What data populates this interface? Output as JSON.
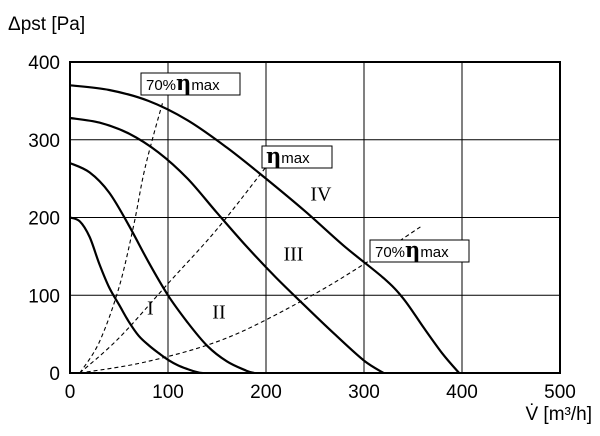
{
  "chart_data": {
    "type": "line",
    "title": "",
    "xlabel": "V̇ [m³/h]",
    "ylabel": "Δpst [Pa]",
    "xlim": [
      0,
      500
    ],
    "ylim": [
      0,
      400
    ],
    "xticks": [
      "0",
      "100",
      "200",
      "300",
      "400",
      "500"
    ],
    "yticks": [
      "0",
      "100",
      "200",
      "300",
      "400"
    ],
    "grid": true,
    "series": [
      {
        "name": "I",
        "style": "solid",
        "x": [
          0,
          10,
          20,
          30,
          40,
          50,
          60,
          70,
          80,
          90,
          100,
          110,
          120,
          130,
          135
        ],
        "y": [
          200,
          195,
          175,
          140,
          110,
          88,
          66,
          48,
          36,
          26,
          17,
          10,
          5,
          1,
          0
        ]
      },
      {
        "name": "II",
        "style": "solid",
        "x": [
          0,
          20,
          40,
          60,
          80,
          100,
          120,
          140,
          160,
          180,
          188
        ],
        "y": [
          270,
          258,
          232,
          190,
          143,
          100,
          65,
          35,
          15,
          3,
          0
        ]
      },
      {
        "name": "III",
        "style": "solid",
        "x": [
          0,
          30,
          60,
          90,
          120,
          150,
          180,
          210,
          240,
          270,
          300,
          320
        ],
        "y": [
          328,
          322,
          308,
          284,
          250,
          206,
          163,
          123,
          86,
          50,
          16,
          0
        ]
      },
      {
        "name": "IV",
        "style": "solid",
        "x": [
          0,
          40,
          80,
          120,
          160,
          200,
          240,
          280,
          320,
          340,
          360,
          380,
          397
        ],
        "y": [
          370,
          364,
          350,
          325,
          290,
          250,
          208,
          163,
          122,
          96,
          60,
          25,
          0
        ]
      },
      {
        "name": "70% ηmax",
        "style": "dashed",
        "x": [
          10,
          30,
          50,
          65,
          75,
          85,
          95
        ],
        "y": [
          0,
          40,
          110,
          190,
          255,
          305,
          350
        ]
      },
      {
        "name": "ηmax",
        "style": "dashed",
        "x": [
          10,
          50,
          100,
          150,
          200
        ],
        "y": [
          0,
          45,
          115,
          185,
          265
        ]
      },
      {
        "name": "70% ηmax",
        "style": "dashed",
        "x": [
          10,
          80,
          160,
          240,
          300,
          360
        ],
        "y": [
          0,
          15,
          45,
          95,
          140,
          190
        ]
      }
    ],
    "annotations": [
      {
        "text": "70%",
        "symbol": "η",
        "suffix": "max"
      },
      {
        "text": "",
        "symbol": "η",
        "suffix": "max"
      },
      {
        "text": "70%",
        "symbol": "η",
        "suffix": "max"
      }
    ],
    "curve_labels": [
      "I",
      "II",
      "III",
      "IV"
    ]
  }
}
